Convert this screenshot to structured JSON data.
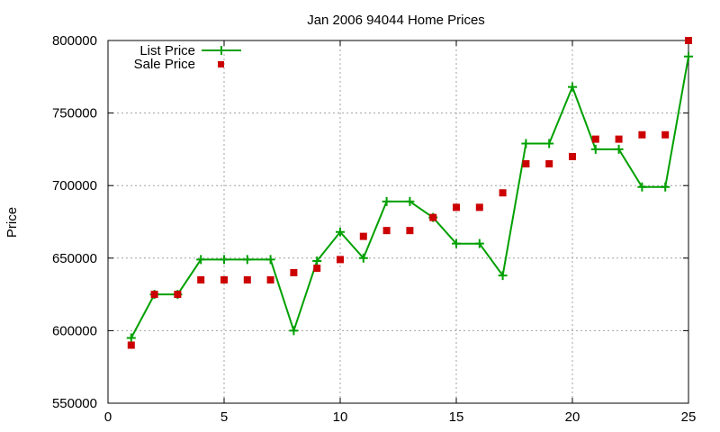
{
  "chart_data": {
    "type": "line",
    "title": "Jan 2006 94044 Home Prices",
    "xlabel": "",
    "ylabel": "Price",
    "xlim": [
      0,
      25
    ],
    "ylim": [
      550000,
      800000
    ],
    "x_ticks": [
      0,
      5,
      10,
      15,
      20,
      25
    ],
    "y_ticks": [
      550000,
      600000,
      650000,
      700000,
      750000,
      800000
    ],
    "grid": true,
    "legend_position": "top-left",
    "x": [
      1,
      2,
      3,
      4,
      5,
      6,
      7,
      8,
      9,
      10,
      11,
      12,
      13,
      14,
      15,
      16,
      17,
      18,
      19,
      20,
      21,
      22,
      23,
      24,
      25
    ],
    "series": [
      {
        "name": "List Price",
        "style": "line-plus",
        "color": "#00a000",
        "values": [
          595000,
          625000,
          625000,
          649000,
          649000,
          649000,
          649000,
          600000,
          648000,
          668000,
          650000,
          689000,
          689000,
          678000,
          660000,
          660000,
          638000,
          729000,
          729000,
          768000,
          725000,
          725000,
          699000,
          699000,
          789000
        ]
      },
      {
        "name": "Sale Price",
        "style": "square",
        "color": "#cc0000",
        "values": [
          590000,
          625000,
          625000,
          635000,
          635000,
          635000,
          635000,
          640000,
          643000,
          649000,
          665000,
          669000,
          669000,
          678000,
          685000,
          685000,
          695000,
          715000,
          715000,
          720000,
          732000,
          732000,
          735000,
          735000,
          800000
        ]
      }
    ]
  }
}
